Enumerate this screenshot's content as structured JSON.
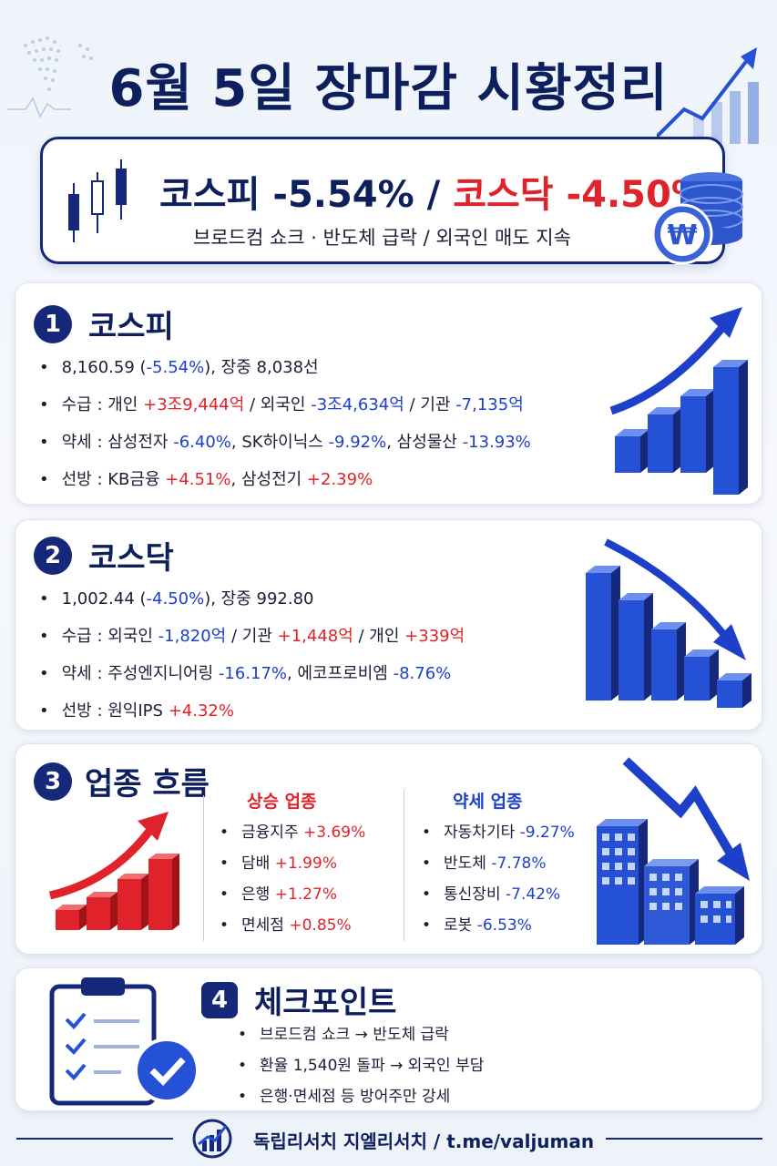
{
  "title": "6월 5일 장마감 시황정리",
  "summary": {
    "kospi_label": "코스피",
    "kospi_change": "-5.54%",
    "separator": "/",
    "kosdaq_label": "코스닥",
    "kosdaq_change": "-4.50%",
    "subtitle": "브로드컴 쇼크 · 반도체 급락 / 외국인 매도 지속"
  },
  "kospi": {
    "number": "1",
    "title": "코스피",
    "line1": {
      "value": "8,160.59 (",
      "change": "-5.54%",
      "rest": "), 장중 8,038선"
    },
    "line2": {
      "label": "수급 : 개인 ",
      "v1": "+3조9,444억",
      "t2": " / 외국인 ",
      "v2": "-3조4,634억",
      "t3": " / 기관 ",
      "v3": "-7,135억"
    },
    "line3": {
      "label": "약세 : 삼성전자 ",
      "v1": "-6.40%",
      "t2": ", SK하이닉스 ",
      "v2": "-9.92%",
      "t3": ", 삼성물산 ",
      "v3": "-13.93%"
    },
    "line4": {
      "label": "선방 : KB금융 ",
      "v1": "+4.51%",
      "t2": ", 삼성전기 ",
      "v2": "+2.39%"
    }
  },
  "kosdaq": {
    "number": "2",
    "title": "코스닥",
    "line1": {
      "value": "1,002.44 (",
      "change": "-4.50%",
      "rest": "), 장중 992.80"
    },
    "line2": {
      "label": "수급 : 외국인 ",
      "v1": "-1,820억",
      "t2": " / 기관 ",
      "v2": "+1,448억",
      "t3": " / 개인 ",
      "v3": "+339억"
    },
    "line3": {
      "label": "약세 : 주성엔지니어링 ",
      "v1": "-16.17%",
      "t2": ", 에코프로비엠 ",
      "v2": "-8.76%"
    },
    "line4": {
      "label": "선방 : 원익IPS ",
      "v1": "+4.32%"
    }
  },
  "sectors": {
    "number": "3",
    "title": "업종 흐름",
    "up_title": "상승 업종",
    "down_title": "약세 업종",
    "up": [
      {
        "name": "금융지주 ",
        "change": "+3.69%"
      },
      {
        "name": "담배 ",
        "change": "+1.99%"
      },
      {
        "name": "은행 ",
        "change": "+1.27%"
      },
      {
        "name": "면세점 ",
        "change": "+0.85%"
      }
    ],
    "down": [
      {
        "name": "자동차기타 ",
        "change": "-9.27%"
      },
      {
        "name": "반도체 ",
        "change": "-7.78%"
      },
      {
        "name": "통신장비 ",
        "change": "-7.42%"
      },
      {
        "name": "로봇 ",
        "change": "-6.53%"
      }
    ]
  },
  "checkpoints": {
    "number": "4",
    "title": "체크포인트",
    "items": [
      "브로드컴 쇼크 → 반도체 급락",
      "환율 1,540원 돌파 → 외국인 부담",
      "은행·면세점 등 방어주만 강세"
    ]
  },
  "footer": {
    "text": "독립리서치 지엘리서치  /  t.me/valjuman"
  },
  "colors": {
    "navy": "#0d1f5c",
    "up": "#e0232a",
    "down": "#1e40c8",
    "card_border": "#15287a"
  },
  "icons": {
    "candles": "candlestick-icon",
    "coins": "won-coin-stack-icon",
    "clipboard": "checklist-clipboard-icon"
  }
}
